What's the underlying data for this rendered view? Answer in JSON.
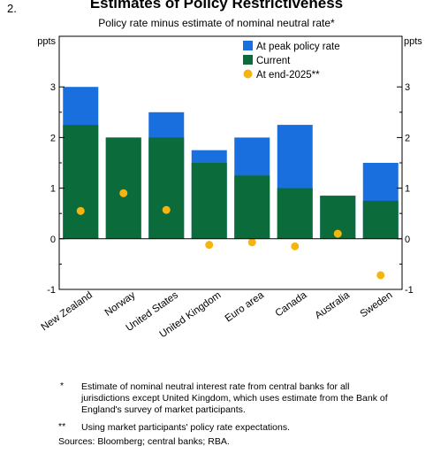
{
  "figure": {
    "number": "2.",
    "title": "Estimates of Policy Restrictiveness",
    "subtitle": "Policy rate minus estimate of nominal neutral rate*"
  },
  "chart_data": {
    "type": "bar",
    "categories": [
      "New Zealand",
      "Norway",
      "United States",
      "United Kingdom",
      "Euro area",
      "Canada",
      "Australia",
      "Sweden"
    ],
    "series": [
      {
        "name": "At peak policy rate",
        "kind": "bar",
        "color": "#1a6fdf",
        "values": [
          3.0,
          2.0,
          2.5,
          1.75,
          2.0,
          2.25,
          0.85,
          1.5
        ]
      },
      {
        "name": "Current",
        "kind": "bar",
        "color": "#0c6b3a",
        "values": [
          2.25,
          2.0,
          2.0,
          1.5,
          1.25,
          1.0,
          0.85,
          0.75
        ]
      },
      {
        "name": "At end-2025**",
        "kind": "dot",
        "color": "#f5b40f",
        "values": [
          0.55,
          0.9,
          0.57,
          -0.12,
          -0.07,
          -0.15,
          0.1,
          -0.72
        ]
      }
    ],
    "ylim": [
      -1,
      4
    ],
    "yticks": [
      -1,
      0,
      1,
      2,
      3
    ],
    "ylabel_left": "ppts",
    "ylabel_right": "ppts",
    "legend_position": "top-right",
    "grid": false
  },
  "notes": [
    {
      "mark": "*",
      "text": "Estimate of nominal neutral interest rate from central banks for all jurisdictions except United Kingdom, which uses estimate from the Bank of England's survey of market participants."
    },
    {
      "mark": "**",
      "text": "Using market participants' policy rate expectations."
    }
  ],
  "sources": "Sources: Bloomberg; central banks; RBA."
}
